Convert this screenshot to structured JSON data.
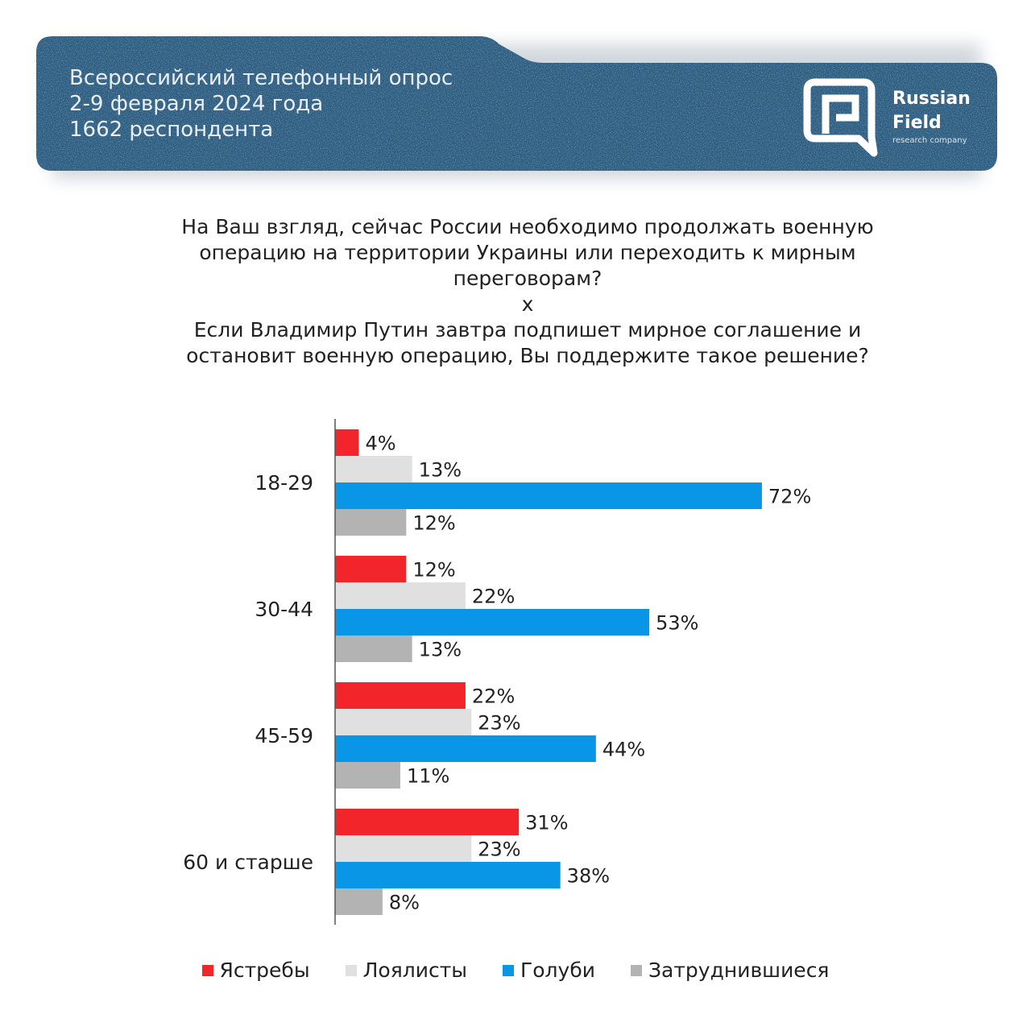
{
  "header": {
    "lines": [
      "Всероссийский телефонный опрос",
      "2-9 февраля 2024 года",
      "1662 респондента"
    ],
    "logo": {
      "name_line1": "Russian",
      "name_line2": "Field",
      "tagline": "research company"
    },
    "background_color": "#2b5b7f"
  },
  "question": {
    "line1": "На Ваш взгляд, сейчас России необходимо продолжать военную",
    "line2": "операцию на территории Украины или переходить к мирным",
    "line3": "переговорам?",
    "separator": "x",
    "line4": "Если Владимир Путин завтра подпишет мирное соглашение и",
    "line5": "остановит военную операцию, Вы поддержите такое решение?"
  },
  "chart_data": {
    "type": "bar",
    "orientation": "horizontal",
    "categories": [
      "18-29",
      "30-44",
      "45-59",
      "60 и старше"
    ],
    "series": [
      {
        "name": "Ястребы",
        "color": "#f2262a",
        "values": [
          4,
          12,
          22,
          31
        ]
      },
      {
        "name": "Лоялисты",
        "color": "#e0e0e0",
        "values": [
          13,
          22,
          23,
          23
        ]
      },
      {
        "name": "Голуби",
        "color": "#0a96e6",
        "values": [
          72,
          53,
          44,
          38
        ]
      },
      {
        "name": "Затруднившиеся",
        "color": "#b3b3b3",
        "values": [
          12,
          13,
          11,
          8
        ]
      }
    ],
    "value_suffix": "%",
    "legend_position": "bottom",
    "grid": false
  }
}
